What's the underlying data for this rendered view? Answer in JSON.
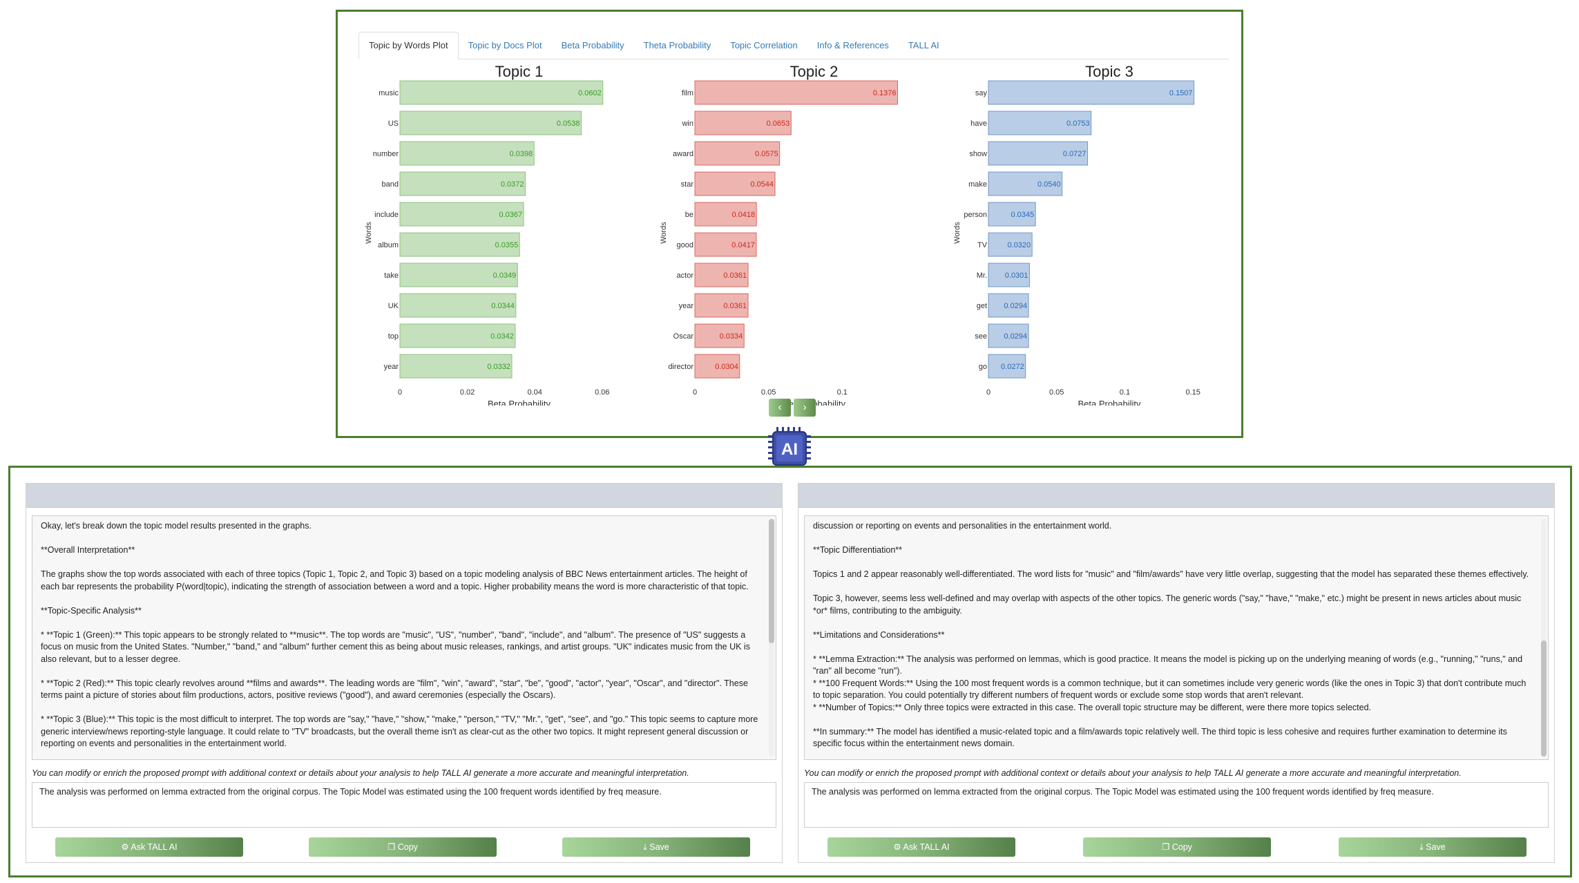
{
  "tabs": [
    "Topic by Words Plot",
    "Topic by Docs Plot",
    "Beta Probability",
    "Theta Probability",
    "Topic Correlation",
    "Info & References",
    "TALL AI"
  ],
  "active_tab": 0,
  "chart_data": [
    {
      "type": "bar",
      "orientation": "horizontal",
      "title": "Topic 1",
      "color": "#c5e0bc",
      "stroke": "#8fc27f",
      "label_color": "#3a9a2a",
      "categories": [
        "music",
        "US",
        "number",
        "band",
        "include",
        "album",
        "take",
        "UK",
        "top",
        "year"
      ],
      "values": [
        0.0602,
        0.0538,
        0.0398,
        0.0372,
        0.0367,
        0.0355,
        0.0349,
        0.0344,
        0.0342,
        0.0332
      ],
      "value_labels": [
        "0.0602",
        "0.0538",
        "0.0398",
        "0.0372",
        "0.0367",
        "0.0355",
        "0.0349",
        "0.0344",
        "0.0342",
        "0.0332"
      ],
      "xlabel": "Beta Probability",
      "ylabel": "Words",
      "xlim": [
        0,
        0.0625
      ],
      "xticks": [
        0,
        0.02,
        0.04,
        0.06
      ],
      "xtick_labels": [
        "0",
        "0.02",
        "0.04",
        "0.06"
      ]
    },
    {
      "type": "bar",
      "orientation": "horizontal",
      "title": "Topic 2",
      "color": "#eeb4b0",
      "stroke": "#d8675f",
      "label_color": "#cc2a1e",
      "categories": [
        "film",
        "win",
        "award",
        "star",
        "be",
        "good",
        "actor",
        "year",
        "Oscar",
        "director"
      ],
      "values": [
        0.1376,
        0.0653,
        0.0575,
        0.0544,
        0.0418,
        0.0417,
        0.0361,
        0.0361,
        0.0334,
        0.0304
      ],
      "value_labels": [
        "0.1376",
        "0.0653",
        "0.0575",
        "0.0544",
        "0.0418",
        "0.0417",
        "0.0361",
        "0.0361",
        "0.0334",
        "0.0304"
      ],
      "xlabel": "Beta Probability",
      "ylabel": "Words",
      "xlim": [
        0,
        0.143
      ],
      "xticks": [
        0,
        0.05,
        0.1
      ],
      "xtick_labels": [
        "0",
        "0.05",
        "0.1"
      ]
    },
    {
      "type": "bar",
      "orientation": "horizontal",
      "title": "Topic 3",
      "color": "#b9cde6",
      "stroke": "#6f97c8",
      "label_color": "#2a6ab8",
      "categories": [
        "say",
        "have",
        "show",
        "make",
        "person",
        "TV",
        "Mr.",
        "get",
        "see",
        "go"
      ],
      "values": [
        0.1507,
        0.0753,
        0.0727,
        0.054,
        0.0345,
        0.032,
        0.0301,
        0.0294,
        0.0294,
        0.0272
      ],
      "value_labels": [
        "0.1507",
        "0.0753",
        "0.0727",
        "0.0540",
        "0.0345",
        "0.0320",
        "0.0301",
        "0.0294",
        "0.0294",
        "0.0272"
      ],
      "xlabel": "Beta Probability",
      "ylabel": "Words",
      "xlim": [
        0,
        0.157
      ],
      "xticks": [
        0,
        0.05,
        0.1,
        0.15
      ],
      "xtick_labels": [
        "0",
        "0.05",
        "0.1",
        "0.15"
      ]
    }
  ],
  "nav": {
    "prev": "‹",
    "next": "›"
  },
  "ai_badge": "AI",
  "left_panel": {
    "paragraphs": [
      "Okay, let's break down the topic model results presented in the graphs.",
      "**Overall Interpretation**",
      "The graphs show the top words associated with each of three topics (Topic 1, Topic 2, and Topic 3) based on a topic modeling analysis of BBC News entertainment articles. The height of each bar represents the probability P(word|topic), indicating the strength of association between a word and a topic. Higher probability means the word is more characteristic of that topic.",
      "**Topic-Specific Analysis**",
      "*   **Topic 1 (Green):** This topic appears to be strongly related to **music**.  The top words are \"music\", \"US\", \"number\", \"band\", \"include\", and \"album\". The presence of \"US\" suggests a focus on music from the United States.  \"Number,\" \"band,\" and \"album\" further cement this as being about music releases, rankings, and artist groups. \"UK\" indicates music from the UK is also relevant, but to a lesser degree.",
      "*   **Topic 2 (Red):** This topic clearly revolves around **films and awards**. The leading words are \"film\", \"win\", \"award\", \"star\", \"be\", \"good\", \"actor\", \"year\", \"Oscar\", and \"director\". These terms paint a picture of stories about film productions, actors, positive reviews (\"good\"), and award ceremonies (especially the Oscars).",
      "*   **Topic 3 (Blue):** This topic is the most difficult to interpret.  The top words are \"say,\" \"have,\" \"show,\" \"make,\" \"person,\" \"TV,\" \"Mr.\", \"get\", \"see\", and \"go.\" This topic seems to capture more generic interview/news reporting-style language. It could relate to \"TV\" broadcasts, but the overall theme isn't as clear-cut as the other two topics. It might represent general discussion or reporting on events and personalities in the entertainment world."
    ],
    "hint": "You can modify or enrich the proposed prompt with additional context or details about your analysis to help TALL AI generate a more accurate and meaningful interpretation.",
    "prompt": "The analysis was performed on lemma extracted from the original corpus. The Topic Model was estimated using the 100 frequent words identified by freq measure.",
    "buttons": {
      "ask": "Ask TALL AI",
      "copy": "Copy",
      "save": "Save"
    }
  },
  "right_panel": {
    "paragraphs": [
      "discussion or reporting on events and personalities in the entertainment world.",
      "**Topic Differentiation**",
      "Topics 1 and 2 appear reasonably well-differentiated. The word lists for \"music\" and \"film/awards\" have very little overlap, suggesting that the model has separated these themes effectively.",
      "Topic 3, however, seems less well-defined and may overlap with aspects of the other topics. The generic words (\"say,\" \"have,\" \"make,\" etc.) might be present in news articles about music *or* films, contributing to the ambiguity.",
      "**Limitations and Considerations**",
      "*   **Lemma Extraction:** The analysis was performed on lemmas, which is good practice. It means the model is picking up on the underlying meaning of words (e.g., \"running,\" \"runs,\" and \"ran\" all become \"run\").\n*   **100 Frequent Words:** Using the 100 most frequent words is a common technique, but it can sometimes include very generic words (like the ones in Topic 3) that don't contribute much to topic separation. You could potentially try different numbers of frequent words or exclude some stop words that aren't relevant.\n*   **Number of Topics:** Only three topics were extracted in this case. The overall topic structure may be different, were there more topics selected.",
      "**In summary:**  The model has identified a music-related topic and a film/awards topic relatively well. The third topic is less cohesive and requires further examination to determine its specific focus within the entertainment news domain."
    ],
    "hint": "You can modify or enrich the proposed prompt with additional context or details about your analysis to help TALL AI generate a more accurate and meaningful interpretation.",
    "prompt": "The analysis was performed on lemma extracted from the original corpus. The Topic Model was estimated using the 100 frequent words identified by freq measure.",
    "buttons": {
      "ask": "Ask TALL AI",
      "copy": "Copy",
      "save": "Save"
    }
  }
}
